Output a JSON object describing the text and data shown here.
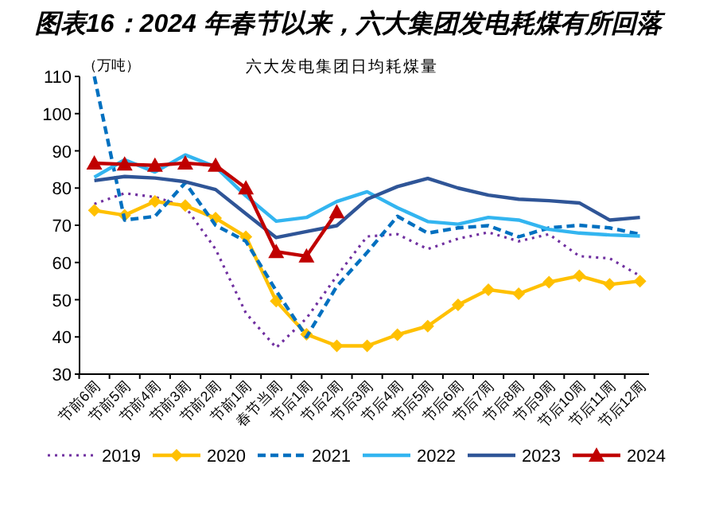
{
  "chart_data": {
    "type": "line",
    "title": "图表16：2024 年春节以来，六大集团发电耗煤有所回落",
    "subtitle": "六大发电集团日均耗煤量",
    "ylabel": "（万吨）",
    "categories": [
      "节前6周",
      "节前5周",
      "节前4周",
      "节前3周",
      "节前2周",
      "节前1周",
      "春节当周",
      "节后1周",
      "节后2周",
      "节后3周",
      "节后4周",
      "节后5周",
      "节后6周",
      "节后7周",
      "节后8周",
      "节后9周",
      "节后10周",
      "节后11周",
      "节后12周"
    ],
    "ylim": [
      30,
      110
    ],
    "yticks": [
      30,
      40,
      50,
      60,
      70,
      80,
      90,
      100,
      110
    ],
    "grid": false,
    "legend": "bottom",
    "series": [
      {
        "name": "2019",
        "color": "#7030a0",
        "line_style": "dotted",
        "marker": "none",
        "values": [
          75.7,
          78.6,
          77.6,
          75,
          63.6,
          46.4,
          37.1,
          45,
          56.4,
          67,
          67.6,
          63.6,
          66.4,
          68.1,
          65.7,
          67.6,
          61.7,
          61.1,
          56.4
        ]
      },
      {
        "name": "2020",
        "color": "#ffc000",
        "line_style": "solid",
        "marker": "diamond",
        "values": [
          74,
          72.7,
          76.4,
          75.3,
          71.9,
          66.9,
          49.6,
          40.7,
          37.6,
          37.6,
          40.6,
          42.9,
          48.6,
          52.7,
          51.6,
          54.7,
          56.4,
          54.1,
          55
        ]
      },
      {
        "name": "2021",
        "color": "#0070c0",
        "line_style": "dashed",
        "marker": "none",
        "values": [
          110,
          71.4,
          72.4,
          81.4,
          70,
          65.7,
          52.4,
          40,
          53.6,
          62.7,
          72.4,
          67.9,
          69.3,
          69.9,
          66.9,
          69.3,
          70,
          69.3,
          67.6
        ]
      },
      {
        "name": "2022",
        "color": "#33b5f0",
        "line_style": "solid",
        "marker": "none",
        "values": [
          82.9,
          87.6,
          84.3,
          88.9,
          85.7,
          77.9,
          71.1,
          72.1,
          76.4,
          79,
          74.7,
          71,
          70.3,
          72.1,
          71.4,
          68.9,
          67.9,
          67.4,
          67.1
        ]
      },
      {
        "name": "2023",
        "color": "#2f5597",
        "line_style": "solid",
        "marker": "none",
        "values": [
          82,
          83.1,
          82.7,
          81.7,
          79.6,
          73.1,
          66.7,
          68.3,
          69.9,
          77,
          80.4,
          82.6,
          80,
          78.1,
          77,
          76.6,
          76,
          71.4,
          72.1
        ]
      },
      {
        "name": "2024",
        "color": "#c00000",
        "line_style": "solid",
        "marker": "triangle",
        "values": [
          86.7,
          86.4,
          86.1,
          86.7,
          86.1,
          80,
          62.9,
          61.7,
          73.6,
          null,
          null,
          null,
          null,
          null,
          null,
          null,
          null,
          null,
          null
        ]
      }
    ]
  }
}
